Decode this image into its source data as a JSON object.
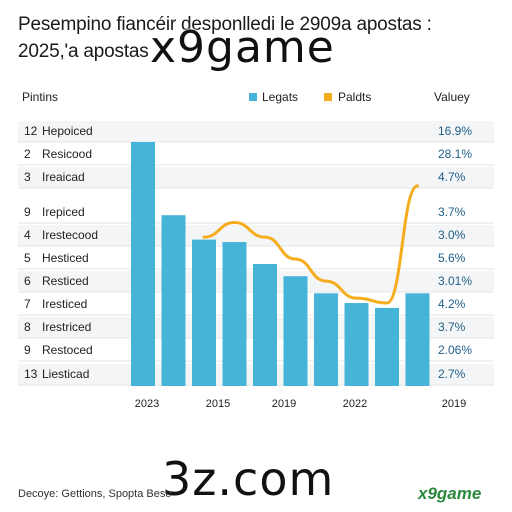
{
  "header": {
    "title_line1": "Pesempino fiancéir desponlledi le 2909a apostas :",
    "title_line2": "2025,'a apostas",
    "left_column_header": "Pintins",
    "right_column_header": "Valuey"
  },
  "watermarks": {
    "top": "x9game",
    "middle": "3z.com"
  },
  "footer": {
    "note": "Decoye: Gettions, Spopta Beso",
    "brand": "x9game"
  },
  "chart_data": {
    "type": "bar",
    "title": "Pesempino fiancéir desponlledi le 2909a apostas : 2025,'a apostas",
    "legend": [
      {
        "name": "Legats",
        "color": "#46b3d8"
      },
      {
        "name": "Paldts",
        "color": "#f6ad1d"
      }
    ],
    "rows": [
      {
        "index": "12",
        "label": "Hepoiced",
        "value": "16.9%"
      },
      {
        "index": "2",
        "label": "Resicood",
        "value": "28.1%"
      },
      {
        "index": "3",
        "label": "Ireaicad",
        "value": "4.7%"
      },
      {
        "index": "9",
        "label": "Irepiced",
        "value": "3.7%"
      },
      {
        "index": "4",
        "label": "Irestecood",
        "value": "3.0%"
      },
      {
        "index": "5",
        "label": "Hesticed",
        "value": "5.6%"
      },
      {
        "index": "6",
        "label": "Resticed",
        "value": "3.01%"
      },
      {
        "index": "7",
        "label": "Iresticed",
        "value": "4.2%"
      },
      {
        "index": "8",
        "label": "Irestriced",
        "value": "3.7%"
      },
      {
        "index": "9",
        "label": "Restoced",
        "value": "2.06%"
      },
      {
        "index": "13",
        "label": "Liesticad",
        "value": "2.7%"
      }
    ],
    "x_tick_labels": [
      "2023",
      "2015",
      "2019",
      "2022",
      "2019"
    ],
    "bars": [
      {
        "series": "Legats",
        "value": 100
      },
      {
        "series": "Legats",
        "value": 70
      },
      {
        "series": "Legats",
        "value": 60
      },
      {
        "series": "Legats",
        "value": 59
      },
      {
        "series": "Legats",
        "value": 50
      },
      {
        "series": "Legats",
        "value": 45
      },
      {
        "series": "Legats",
        "value": 38
      },
      {
        "series": "Legats",
        "value": 34
      },
      {
        "series": "Legats",
        "value": 32
      },
      {
        "series": "Legats",
        "value": 38
      }
    ],
    "line": {
      "series": "Paldts",
      "values": [
        null,
        null,
        61,
        67,
        61,
        52,
        43,
        36,
        34,
        82
      ]
    },
    "ylim": [
      0,
      100
    ],
    "grid": true
  }
}
